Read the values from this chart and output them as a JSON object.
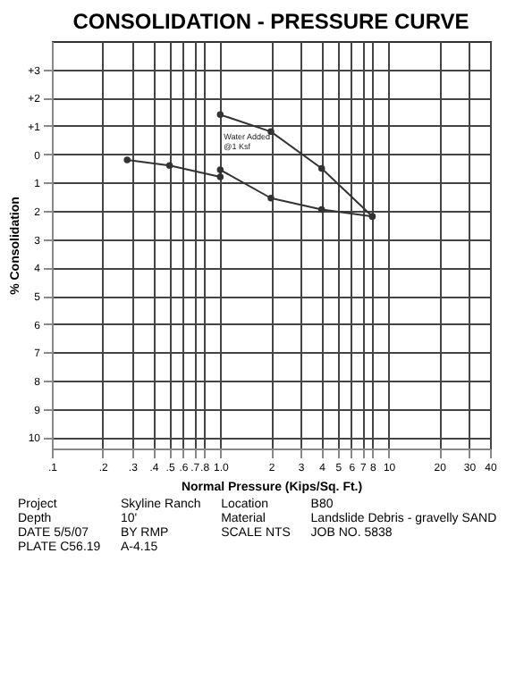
{
  "chart_data": {
    "type": "line",
    "title": "CONSOLIDATION - PRESSURE CURVE",
    "xlabel": "Normal Pressure (Kips/Sq. Ft.)",
    "ylabel": "% Consolidation",
    "log": "x",
    "grid": true,
    "legend": false,
    "marker": "circle",
    "line_style": "solid",
    "xlim": [
      0.1,
      40
    ],
    "xticks": [
      {
        "value": 0.1,
        "label": ".1"
      },
      {
        "value": 0.2,
        "label": ".2"
      },
      {
        "value": 0.3,
        "label": ".3"
      },
      {
        "value": 0.4,
        "label": ".4"
      },
      {
        "value": 0.5,
        "label": ".5"
      },
      {
        "value": 0.6,
        "label": ".6"
      },
      {
        "value": 0.7,
        "label": ".7"
      },
      {
        "value": 0.8,
        "label": ".8"
      },
      {
        "value": 1,
        "label": "1.0"
      },
      2,
      3,
      4,
      5,
      6,
      7,
      8,
      10,
      20,
      30,
      40
    ],
    "ylim": [
      10.4,
      -4
    ],
    "yticks": [
      {
        "value": -3,
        "label": "+3"
      },
      {
        "value": -2,
        "label": "+2"
      },
      {
        "value": -1,
        "label": "+1"
      },
      0,
      1,
      2,
      3,
      4,
      5,
      6,
      7,
      8,
      9,
      10
    ],
    "series": [
      {
        "color": "#333333",
        "x": [
          0.28,
          0.5,
          1,
          1,
          2,
          4,
          8
        ],
        "values": [
          0.2,
          0.4,
          0.8,
          0.55,
          1.55,
          1.95,
          2.2
        ]
      },
      {
        "color": "#333333",
        "x": [
          8,
          4,
          2,
          1
        ],
        "values": [
          2.2,
          0.5,
          -0.8,
          -1.4
        ]
      }
    ],
    "annotations": [
      {
        "text": "Water Added @1 Ksf",
        "x": 1,
        "y": 0.55
      },
      "Project",
      "Skyline Ranch",
      "Location",
      "B80",
      "Depth",
      "10'",
      "Material",
      "Landslide Debris - gravelly SAND",
      "DATE 5/5/07",
      "BY RMP",
      "SCALE NTS",
      "JOB NO. 5838",
      "PLATE C56.19",
      "A-4.15"
    ]
  }
}
